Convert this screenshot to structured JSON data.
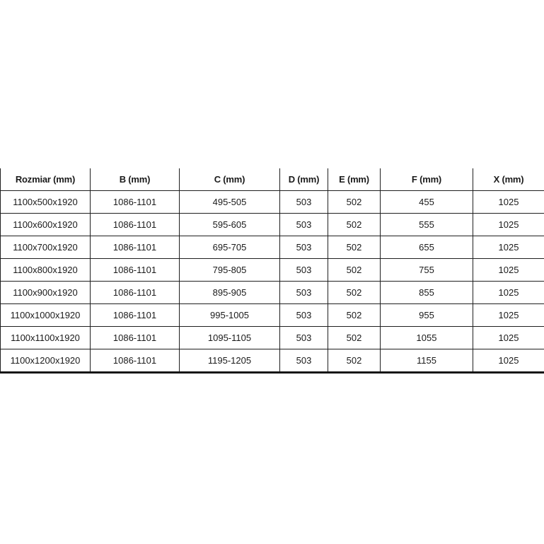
{
  "table": {
    "columns": [
      "Rozmiar (mm)",
      "B (mm)",
      "C (mm)",
      "D (mm)",
      "E (mm)",
      "F (mm)",
      "X (mm)"
    ],
    "rows": [
      [
        "1100x500x1920",
        "1086-1101",
        "495-505",
        "503",
        "502",
        "455",
        "1025"
      ],
      [
        "1100x600x1920",
        "1086-1101",
        "595-605",
        "503",
        "502",
        "555",
        "1025"
      ],
      [
        "1100x700x1920",
        "1086-1101",
        "695-705",
        "503",
        "502",
        "655",
        "1025"
      ],
      [
        "1100x800x1920",
        "1086-1101",
        "795-805",
        "503",
        "502",
        "755",
        "1025"
      ],
      [
        "1100x900x1920",
        "1086-1101",
        "895-905",
        "503",
        "502",
        "855",
        "1025"
      ],
      [
        "1100x1000x1920",
        "1086-1101",
        "995-1005",
        "503",
        "502",
        "955",
        "1025"
      ],
      [
        "1100x1100x1920",
        "1086-1101",
        "1095-1105",
        "503",
        "502",
        "1055",
        "1025"
      ],
      [
        "1100x1200x1920",
        "1086-1101",
        "1195-1205",
        "503",
        "502",
        "1155",
        "1025"
      ]
    ],
    "colors": {
      "border": "#1f1f1f",
      "text": "#1a1a1a",
      "background": "#ffffff"
    }
  }
}
